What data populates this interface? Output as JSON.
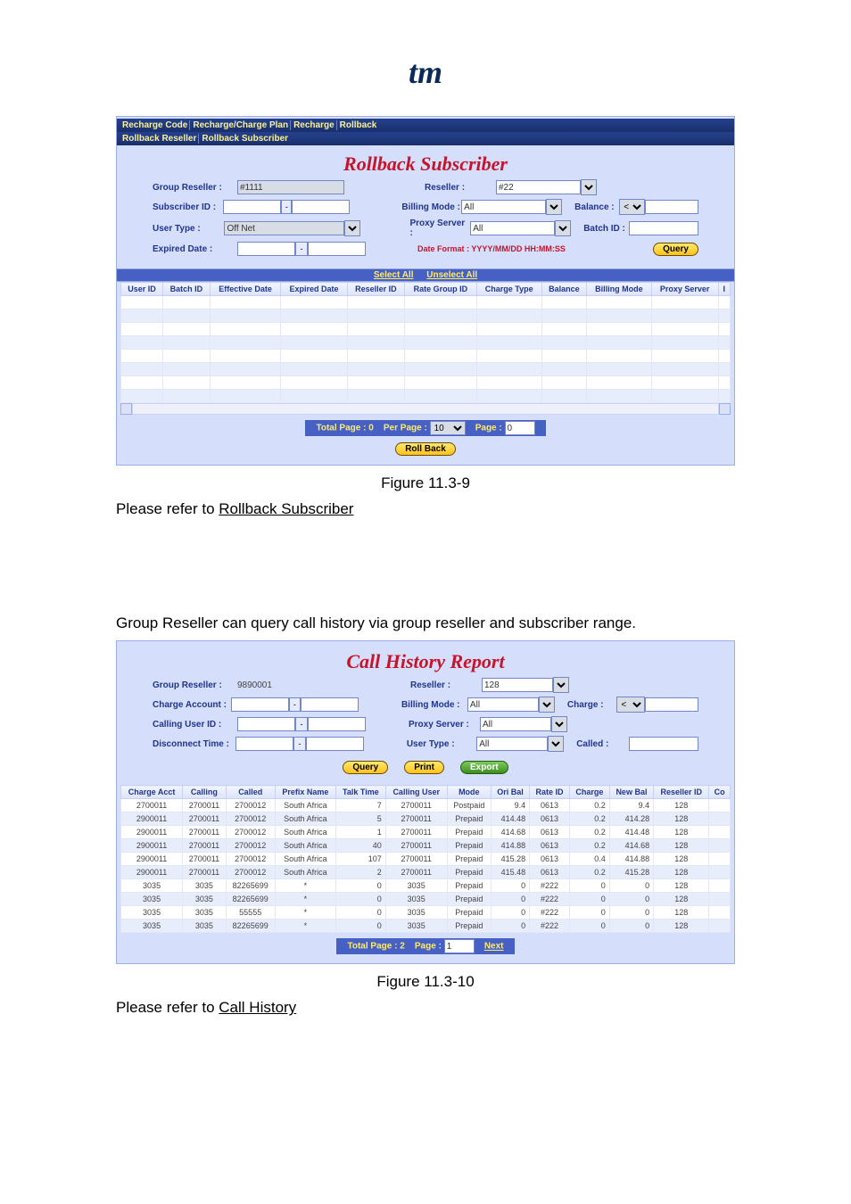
{
  "logo": "tm",
  "rollback": {
    "tabs": [
      "Recharge Code",
      "Recharge/Charge Plan",
      "Recharge",
      "Rollback"
    ],
    "tabs2": [
      "Rollback Reseller",
      "Rollback Subscriber"
    ],
    "title": "Rollback Subscriber",
    "labels": {
      "group_reseller": "Group Reseller :",
      "subscriber_id": "Subscriber ID :",
      "user_type": "User Type :",
      "expired_date": "Expired Date :",
      "reseller": "Reseller :",
      "billing_mode": "Billing Mode :",
      "proxy_server": "Proxy Server :",
      "balance": "Balance :",
      "batch_id": "Batch ID :",
      "date_format": "Date Format : YYYY/MM/DD HH:MM:SS",
      "query": "Query",
      "select_all": "Select All",
      "unselect_all": "Unselect All",
      "roll_back": "Roll Back"
    },
    "values": {
      "group_reseller": "#1111",
      "reseller": "#22",
      "user_type": "Off Net",
      "billing_mode": "All",
      "proxy_server": "All",
      "balance_op": "<"
    },
    "columns": [
      "User ID",
      "Batch ID",
      "Effective Date",
      "Expired Date",
      "Reseller ID",
      "Rate Group ID",
      "Charge Type",
      "Balance",
      "Billing Mode",
      "Proxy Server",
      "I"
    ],
    "empty_rows": 8,
    "pager": {
      "total_page": "Total Page : 0",
      "per_page_label": "Per Page :",
      "per_page": "10",
      "page_label": "Page :",
      "page": "0"
    }
  },
  "caption1": "Figure 11.3-9",
  "text1a": "Please refer to ",
  "text1b": "Rollback Subscriber",
  "text2": "Group Reseller can query call history via group reseller and subscriber range.",
  "callhist": {
    "title": "Call History Report",
    "labels": {
      "group_reseller": "Group Reseller :",
      "charge_account": "Charge Account :",
      "calling_user_id": "Calling User ID :",
      "disconnect_time": "Disconnect Time :",
      "reseller": "Reseller :",
      "billing_mode": "Billing Mode :",
      "proxy_server": "Proxy Server :",
      "user_type": "User Type :",
      "charge": "Charge :",
      "called": "Called :",
      "query": "Query",
      "print": "Print",
      "export": "Export"
    },
    "values": {
      "group_reseller": "9890001",
      "reseller": "128",
      "billing_mode": "All",
      "proxy_server": "All",
      "user_type": "All",
      "charge_op": "<"
    },
    "columns": [
      "Charge Acct",
      "Calling",
      "Called",
      "Prefix Name",
      "Talk Time",
      "Calling User",
      "Mode",
      "Ori Bal",
      "Rate ID",
      "Charge",
      "New Bal",
      "Reseller ID",
      "Co"
    ],
    "rows": [
      [
        "2700011",
        "2700011",
        "2700012",
        "South Africa",
        "7",
        "2700011",
        "Postpaid",
        "9.4",
        "0613",
        "0.2",
        "9.4",
        "128",
        ""
      ],
      [
        "2900011",
        "2700011",
        "2700012",
        "South Africa",
        "5",
        "2700011",
        "Prepaid",
        "414.48",
        "0613",
        "0.2",
        "414.28",
        "128",
        ""
      ],
      [
        "2900011",
        "2700011",
        "2700012",
        "South Africa",
        "1",
        "2700011",
        "Prepaid",
        "414.68",
        "0613",
        "0.2",
        "414.48",
        "128",
        ""
      ],
      [
        "2900011",
        "2700011",
        "2700012",
        "South Africa",
        "40",
        "2700011",
        "Prepaid",
        "414.88",
        "0613",
        "0.2",
        "414.68",
        "128",
        ""
      ],
      [
        "2900011",
        "2700011",
        "2700012",
        "South Africa",
        "107",
        "2700011",
        "Prepaid",
        "415.28",
        "0613",
        "0.4",
        "414.88",
        "128",
        ""
      ],
      [
        "2900011",
        "2700011",
        "2700012",
        "South Africa",
        "2",
        "2700011",
        "Prepaid",
        "415.48",
        "0613",
        "0.2",
        "415.28",
        "128",
        ""
      ],
      [
        "3035",
        "3035",
        "82265699",
        "*",
        "0",
        "3035",
        "Prepaid",
        "0",
        "#222",
        "0",
        "0",
        "128",
        ""
      ],
      [
        "3035",
        "3035",
        "82265699",
        "*",
        "0",
        "3035",
        "Prepaid",
        "0",
        "#222",
        "0",
        "0",
        "128",
        ""
      ],
      [
        "3035",
        "3035",
        "55555",
        "*",
        "0",
        "3035",
        "Prepaid",
        "0",
        "#222",
        "0",
        "0",
        "128",
        ""
      ],
      [
        "3035",
        "3035",
        "82265699",
        "*",
        "0",
        "3035",
        "Prepaid",
        "0",
        "#222",
        "0",
        "0",
        "128",
        ""
      ]
    ],
    "pager": {
      "total_page": "Total Page : 2",
      "page_label": "Page :",
      "page": "1",
      "next": "Next"
    }
  },
  "caption2": "Figure 11.3-10",
  "text3a": "Please refer to ",
  "text3b": "Call History"
}
